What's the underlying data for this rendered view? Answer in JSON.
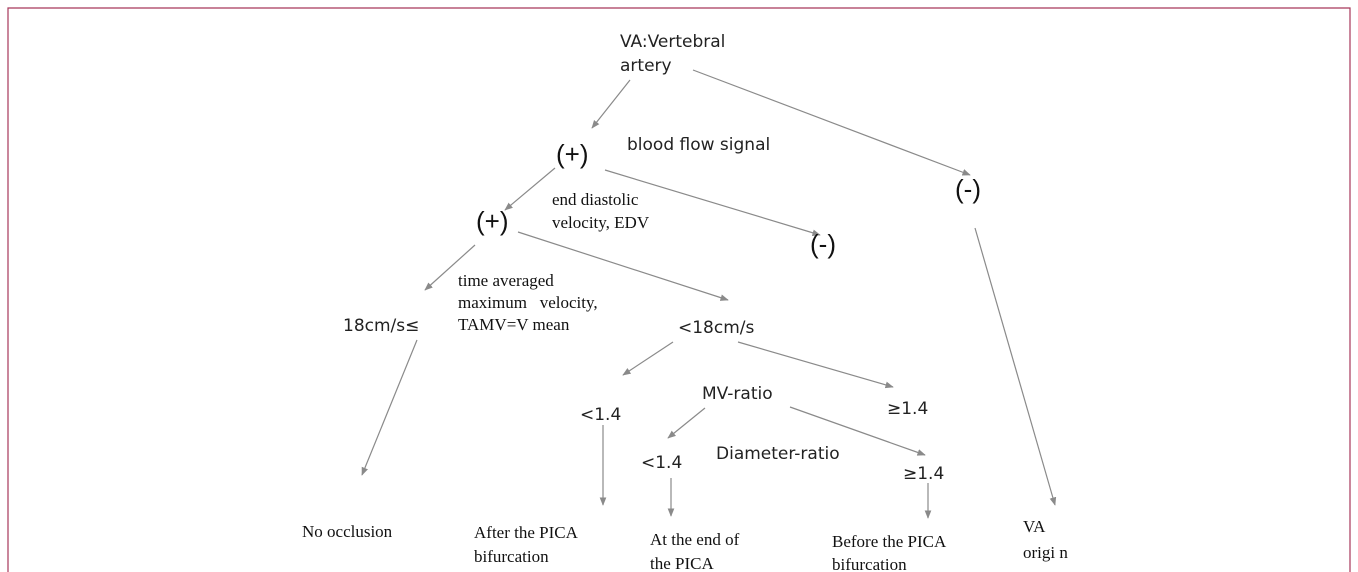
{
  "nodes": [
    {
      "lines": [
        "VA:Vertebral",
        "artery"
      ]
    },
    {
      "lines": [
        "(+)"
      ]
    },
    {
      "lines": [
        "blood flow signal"
      ]
    },
    {
      "lines": [
        "(-)"
      ]
    },
    {
      "lines": [
        "end diastolic",
        "velocity, EDV"
      ]
    },
    {
      "lines": [
        "(+)"
      ]
    },
    {
      "lines": [
        "(-)"
      ]
    },
    {
      "lines": [
        "time averaged",
        "maximum   velocity,",
        "TAMV=V mean"
      ]
    },
    {
      "lines": [
        "18cm/s≤"
      ]
    },
    {
      "lines": [
        "<18cm/s"
      ]
    },
    {
      "lines": [
        "MV-ratio"
      ]
    },
    {
      "lines": [
        "<1.4"
      ]
    },
    {
      "lines": [
        "≥1.4"
      ]
    },
    {
      "lines": [
        "<1.4"
      ]
    },
    {
      "lines": [
        "Diameter-ratio"
      ]
    },
    {
      "lines": [
        "≥1.4"
      ]
    },
    {
      "lines": [
        "No occlusion"
      ]
    },
    {
      "lines": [
        "After the PICA",
        "bifurcation"
      ]
    },
    {
      "lines": [
        "At the end of",
        "the PICA"
      ]
    },
    {
      "lines": [
        "Before the PICA",
        "bifurcation"
      ]
    },
    {
      "lines": [
        "VA",
        "origi n"
      ]
    }
  ]
}
